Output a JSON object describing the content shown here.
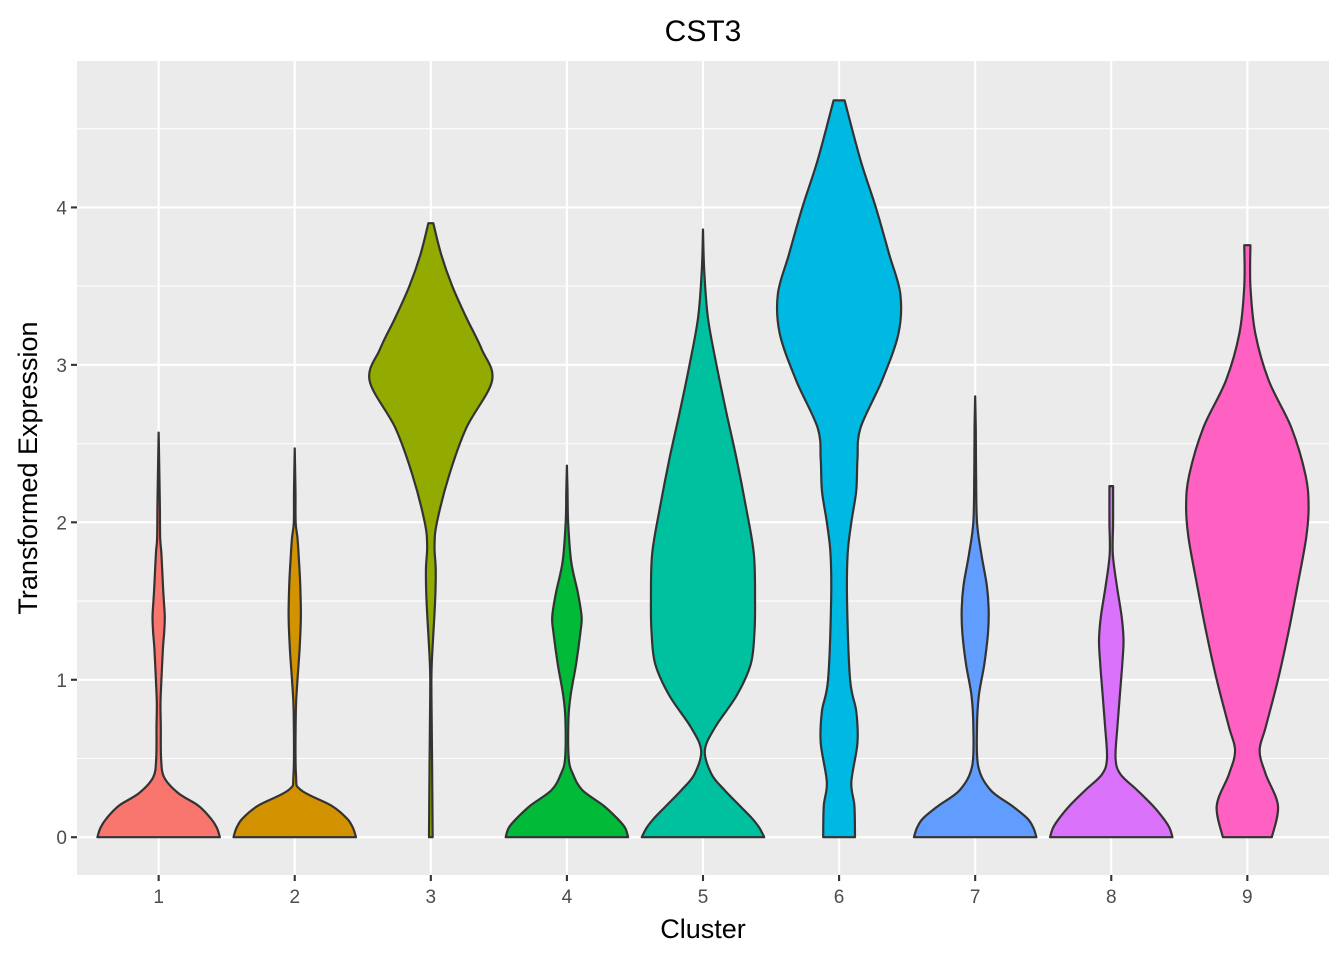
{
  "chart_data": {
    "type": "violin",
    "title": "CST3",
    "xlabel": "Cluster",
    "ylabel": "Transformed Expression",
    "categories": [
      "1",
      "2",
      "3",
      "4",
      "5",
      "6",
      "7",
      "8",
      "9"
    ],
    "y_ticks": [
      0,
      1,
      2,
      3,
      4
    ],
    "y_tick_labels": [
      "0",
      "1",
      "2",
      "3",
      "4"
    ],
    "ylim": [
      -0.24,
      4.93
    ],
    "grid": true,
    "legend": "none",
    "series": [
      {
        "category": "1",
        "color": "#F8766D",
        "min": 0,
        "max": 2.57,
        "density": [
          [
            0,
            1
          ],
          [
            0.06,
            0.95
          ],
          [
            0.12,
            0.85
          ],
          [
            0.2,
            0.65
          ],
          [
            0.28,
            0.32
          ],
          [
            0.38,
            0.09
          ],
          [
            0.5,
            0.04
          ],
          [
            0.7,
            0.035
          ],
          [
            0.85,
            0.03
          ],
          [
            1.0,
            0.045
          ],
          [
            1.2,
            0.07
          ],
          [
            1.3,
            0.09
          ],
          [
            1.4,
            0.1
          ],
          [
            1.5,
            0.085
          ],
          [
            1.6,
            0.07
          ],
          [
            1.8,
            0.045
          ],
          [
            1.9,
            0.025
          ],
          [
            2.1,
            0.02
          ],
          [
            2.3,
            0.012
          ],
          [
            2.57,
            0
          ]
        ]
      },
      {
        "category": "2",
        "color": "#D39200",
        "min": 0,
        "max": 2.47,
        "density": [
          [
            0,
            1
          ],
          [
            0.06,
            0.95
          ],
          [
            0.12,
            0.85
          ],
          [
            0.2,
            0.6
          ],
          [
            0.3,
            0.1
          ],
          [
            0.4,
            0.02
          ],
          [
            0.8,
            0.018
          ],
          [
            1.0,
            0.045
          ],
          [
            1.2,
            0.08
          ],
          [
            1.4,
            0.1
          ],
          [
            1.6,
            0.09
          ],
          [
            1.75,
            0.07
          ],
          [
            1.9,
            0.045
          ],
          [
            2.0,
            0.015
          ],
          [
            2.2,
            0.012
          ],
          [
            2.47,
            0
          ]
        ]
      },
      {
        "category": "3",
        "color": "#93AA00",
        "min": 0,
        "max": 3.9,
        "density": [
          [
            0,
            0.03
          ],
          [
            0.5,
            0.02
          ],
          [
            0.9,
            0.01
          ],
          [
            1.1,
            0.015
          ],
          [
            1.5,
            0.07
          ],
          [
            1.7,
            0.08
          ],
          [
            1.85,
            0.06
          ],
          [
            2.0,
            0.1
          ],
          [
            2.3,
            0.3
          ],
          [
            2.6,
            0.58
          ],
          [
            2.9,
            1
          ],
          [
            3.1,
            0.83
          ],
          [
            3.3,
            0.58
          ],
          [
            3.5,
            0.35
          ],
          [
            3.7,
            0.17
          ],
          [
            3.9,
            0.04
          ]
        ]
      },
      {
        "category": "4",
        "color": "#00BA38",
        "min": 0,
        "max": 2.36,
        "density": [
          [
            0,
            1
          ],
          [
            0.06,
            0.95
          ],
          [
            0.12,
            0.82
          ],
          [
            0.2,
            0.6
          ],
          [
            0.3,
            0.25
          ],
          [
            0.4,
            0.1
          ],
          [
            0.5,
            0.03
          ],
          [
            0.75,
            0.025
          ],
          [
            0.9,
            0.06
          ],
          [
            1.1,
            0.15
          ],
          [
            1.3,
            0.22
          ],
          [
            1.4,
            0.24
          ],
          [
            1.55,
            0.18
          ],
          [
            1.75,
            0.07
          ],
          [
            2.0,
            0.02
          ],
          [
            2.2,
            0.01
          ],
          [
            2.36,
            0
          ]
        ]
      },
      {
        "category": "5",
        "color": "#00C19F",
        "min": 0,
        "max": 3.86,
        "density": [
          [
            0,
            1
          ],
          [
            0.06,
            0.92
          ],
          [
            0.12,
            0.8
          ],
          [
            0.2,
            0.6
          ],
          [
            0.3,
            0.35
          ],
          [
            0.4,
            0.14
          ],
          [
            0.55,
            0.03
          ],
          [
            0.7,
            0.2
          ],
          [
            0.9,
            0.55
          ],
          [
            1.1,
            0.78
          ],
          [
            1.3,
            0.84
          ],
          [
            1.5,
            0.85
          ],
          [
            1.8,
            0.83
          ],
          [
            2.1,
            0.7
          ],
          [
            2.4,
            0.55
          ],
          [
            2.7,
            0.38
          ],
          [
            3.0,
            0.22
          ],
          [
            3.3,
            0.08
          ],
          [
            3.6,
            0.02
          ],
          [
            3.86,
            0
          ]
        ]
      },
      {
        "category": "6",
        "color": "#00B9E3",
        "min": 0,
        "max": 4.68,
        "density": [
          [
            0,
            0.26
          ],
          [
            0.2,
            0.25
          ],
          [
            0.35,
            0.2
          ],
          [
            0.6,
            0.3
          ],
          [
            0.8,
            0.28
          ],
          [
            1.0,
            0.18
          ],
          [
            1.5,
            0.13
          ],
          [
            1.8,
            0.14
          ],
          [
            2.0,
            0.2
          ],
          [
            2.2,
            0.28
          ],
          [
            2.4,
            0.3
          ],
          [
            2.6,
            0.35
          ],
          [
            2.9,
            0.7
          ],
          [
            3.2,
            0.97
          ],
          [
            3.45,
            1
          ],
          [
            3.7,
            0.82
          ],
          [
            4.0,
            0.6
          ],
          [
            4.3,
            0.35
          ],
          [
            4.68,
            0.09
          ]
        ]
      },
      {
        "category": "7",
        "color": "#619CFF",
        "min": 0,
        "max": 2.8,
        "density": [
          [
            0,
            1
          ],
          [
            0.06,
            0.95
          ],
          [
            0.12,
            0.85
          ],
          [
            0.2,
            0.6
          ],
          [
            0.3,
            0.25
          ],
          [
            0.45,
            0.05
          ],
          [
            0.7,
            0.03
          ],
          [
            0.9,
            0.06
          ],
          [
            1.1,
            0.15
          ],
          [
            1.3,
            0.21
          ],
          [
            1.45,
            0.22
          ],
          [
            1.6,
            0.19
          ],
          [
            1.8,
            0.1
          ],
          [
            2.0,
            0.03
          ],
          [
            2.3,
            0.015
          ],
          [
            2.6,
            0.01
          ],
          [
            2.8,
            0
          ]
        ]
      },
      {
        "category": "8",
        "color": "#DB72FB",
        "min": 0,
        "max": 2.23,
        "density": [
          [
            0,
            1
          ],
          [
            0.06,
            0.95
          ],
          [
            0.12,
            0.85
          ],
          [
            0.2,
            0.68
          ],
          [
            0.3,
            0.42
          ],
          [
            0.4,
            0.15
          ],
          [
            0.5,
            0.07
          ],
          [
            0.7,
            0.1
          ],
          [
            0.9,
            0.14
          ],
          [
            1.1,
            0.18
          ],
          [
            1.25,
            0.2
          ],
          [
            1.4,
            0.17
          ],
          [
            1.6,
            0.09
          ],
          [
            1.8,
            0.025
          ],
          [
            2.0,
            0.03
          ],
          [
            2.23,
            0.03
          ]
        ]
      },
      {
        "category": "9",
        "color": "#FF61C3",
        "min": 0,
        "max": 3.76,
        "density": [
          [
            0,
            0.4
          ],
          [
            0.2,
            0.5
          ],
          [
            0.4,
            0.3
          ],
          [
            0.55,
            0.2
          ],
          [
            0.7,
            0.3
          ],
          [
            1.0,
            0.5
          ],
          [
            1.3,
            0.67
          ],
          [
            1.6,
            0.82
          ],
          [
            1.9,
            0.96
          ],
          [
            2.1,
            1
          ],
          [
            2.3,
            0.95
          ],
          [
            2.6,
            0.72
          ],
          [
            2.9,
            0.35
          ],
          [
            3.2,
            0.13
          ],
          [
            3.5,
            0.05
          ],
          [
            3.76,
            0.05
          ]
        ]
      }
    ]
  }
}
